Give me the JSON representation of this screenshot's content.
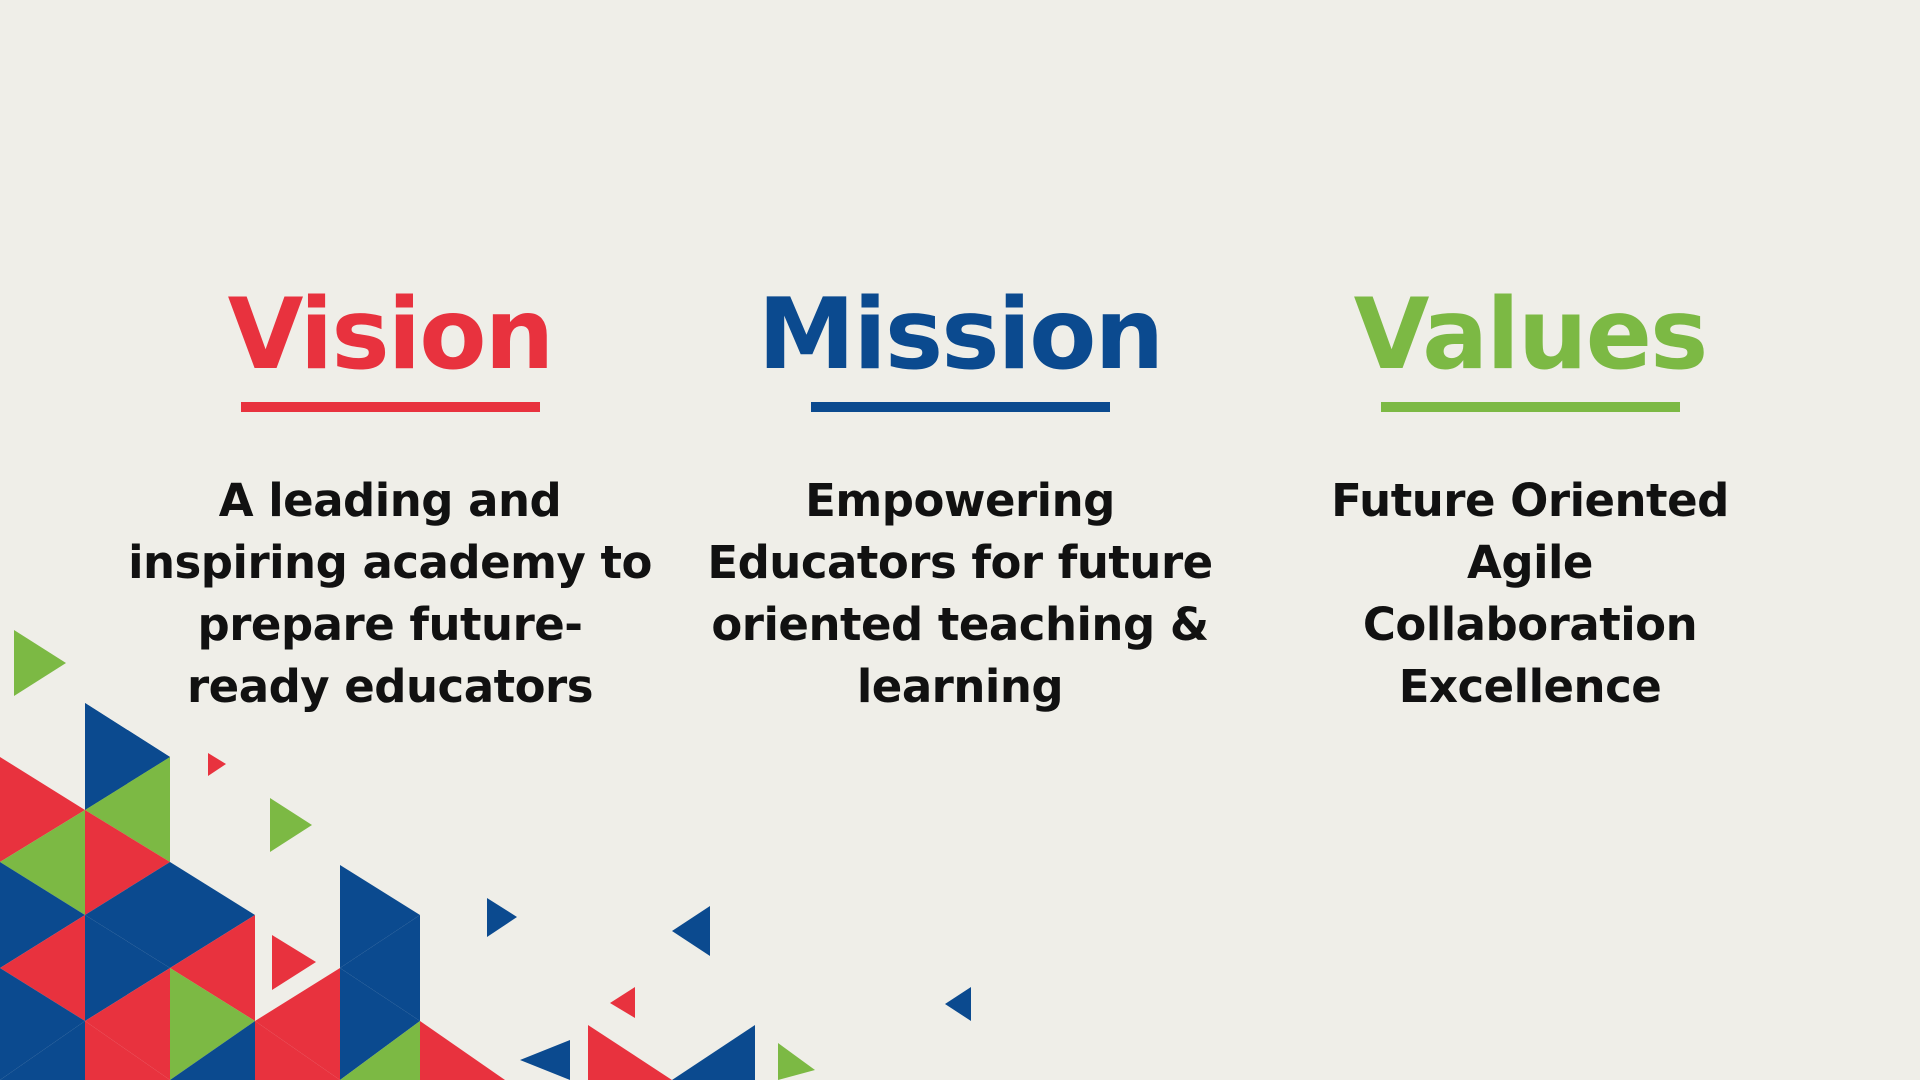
{
  "colors": {
    "background": "#efeee8",
    "red": "#e8323e",
    "blue": "#0b4a8f",
    "green": "#7cb944",
    "text": "#111111"
  },
  "vision": {
    "title": "Vision",
    "color": "#e8323e",
    "lines": [
      "A leading and",
      "inspiring academy to",
      "prepare future-",
      "ready educators"
    ]
  },
  "mission": {
    "title": "Mission",
    "color": "#0b4a8f",
    "lines": [
      "Empowering",
      "Educators for future",
      "oriented teaching &",
      "learning"
    ]
  },
  "values": {
    "title": "Values",
    "color": "#7cb944",
    "lines": [
      "Future Oriented",
      "Agile",
      "Collaboration",
      "Excellence"
    ]
  }
}
